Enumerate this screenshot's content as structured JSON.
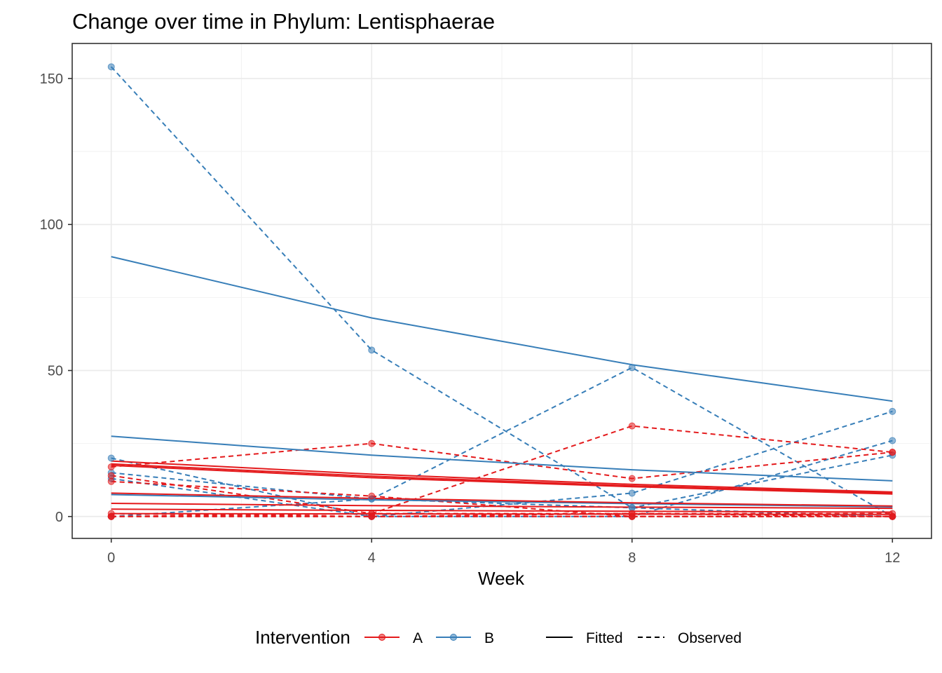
{
  "chart_data": {
    "type": "line",
    "title": "Change over time in Phylum: Lentisphaerae",
    "xlabel": "Week",
    "ylabel": "",
    "x_ticks": [
      0,
      4,
      8,
      12
    ],
    "y_ticks": [
      0,
      50,
      100,
      150
    ],
    "xlim": [
      -0.6,
      12.6
    ],
    "ylim": [
      -7.5,
      162
    ],
    "grid": true,
    "legend_position": "bottom",
    "legend": {
      "color_title": "Intervention",
      "groups": [
        {
          "label": "A",
          "color": "#e41a1c"
        },
        {
          "label": "B",
          "color": "#377eb8"
        }
      ],
      "linetypes": [
        {
          "label": "Fitted",
          "dash": "solid"
        },
        {
          "label": "Observed",
          "dash": "dashed"
        }
      ]
    },
    "observed": [
      {
        "group": "B",
        "x": [
          0,
          4,
          8,
          12
        ],
        "y": [
          154,
          57,
          3,
          0
        ]
      },
      {
        "group": "B",
        "x": [
          0,
          4,
          8,
          12
        ],
        "y": [
          0,
          6,
          51,
          0
        ]
      },
      {
        "group": "B",
        "x": [
          0,
          4,
          8,
          12
        ],
        "y": [
          20,
          0,
          8,
          36
        ]
      },
      {
        "group": "B",
        "x": [
          0,
          4,
          8,
          12
        ],
        "y": [
          15,
          6,
          3,
          21
        ]
      },
      {
        "group": "B",
        "x": [
          0,
          4,
          8,
          12
        ],
        "y": [
          13,
          0,
          0,
          26
        ]
      },
      {
        "group": "A",
        "x": [
          0,
          4,
          8,
          12
        ],
        "y": [
          17,
          25,
          13,
          22
        ]
      },
      {
        "group": "A",
        "x": [
          0,
          4,
          8,
          12
        ],
        "y": [
          0,
          1,
          31,
          22
        ]
      },
      {
        "group": "A",
        "x": [
          0,
          4,
          8,
          12
        ],
        "y": [
          12,
          7,
          0,
          0
        ]
      },
      {
        "group": "A",
        "x": [
          0,
          4,
          8,
          12
        ],
        "y": [
          14,
          1,
          1,
          0
        ]
      },
      {
        "group": "A",
        "x": [
          0,
          4,
          8,
          12
        ],
        "y": [
          0,
          0,
          0,
          0
        ]
      },
      {
        "group": "A",
        "x": [
          0,
          4,
          8,
          12
        ],
        "y": [
          1,
          0,
          0,
          0
        ]
      },
      {
        "group": "A",
        "x": [
          0,
          4,
          8,
          12
        ],
        "y": [
          0,
          0,
          1,
          1
        ]
      }
    ],
    "fitted": [
      {
        "group": "B",
        "x": [
          0,
          4,
          8,
          12
        ],
        "y": [
          89,
          68,
          52,
          39.5
        ]
      },
      {
        "group": "B",
        "x": [
          0,
          4,
          8,
          12
        ],
        "y": [
          27.5,
          21,
          16,
          12.2
        ]
      },
      {
        "group": "B",
        "x": [
          0,
          4,
          8,
          12
        ],
        "y": [
          7.5,
          5.7,
          4.4,
          3.3
        ]
      },
      {
        "group": "A",
        "x": [
          0,
          4,
          8,
          12
        ],
        "y": [
          19,
          14.5,
          11,
          8.4
        ]
      },
      {
        "group": "A",
        "x": [
          0,
          4,
          8,
          12
        ],
        "y": [
          18,
          13.8,
          10.5,
          8
        ]
      },
      {
        "group": "A",
        "x": [
          0,
          4,
          8,
          12
        ],
        "y": [
          17.5,
          13.3,
          10.2,
          7.7
        ]
      },
      {
        "group": "A",
        "x": [
          0,
          4,
          8,
          12
        ],
        "y": [
          8,
          6.2,
          4.7,
          3.6
        ]
      },
      {
        "group": "A",
        "x": [
          0,
          4,
          8,
          12
        ],
        "y": [
          4.5,
          3.7,
          3.2,
          2.8
        ]
      },
      {
        "group": "A",
        "x": [
          0,
          4,
          8,
          12
        ],
        "y": [
          2.5,
          2.1,
          1.8,
          1.5
        ]
      },
      {
        "group": "A",
        "x": [
          0,
          4,
          8,
          12
        ],
        "y": [
          1,
          0.9,
          0.8,
          0.7
        ]
      }
    ]
  }
}
